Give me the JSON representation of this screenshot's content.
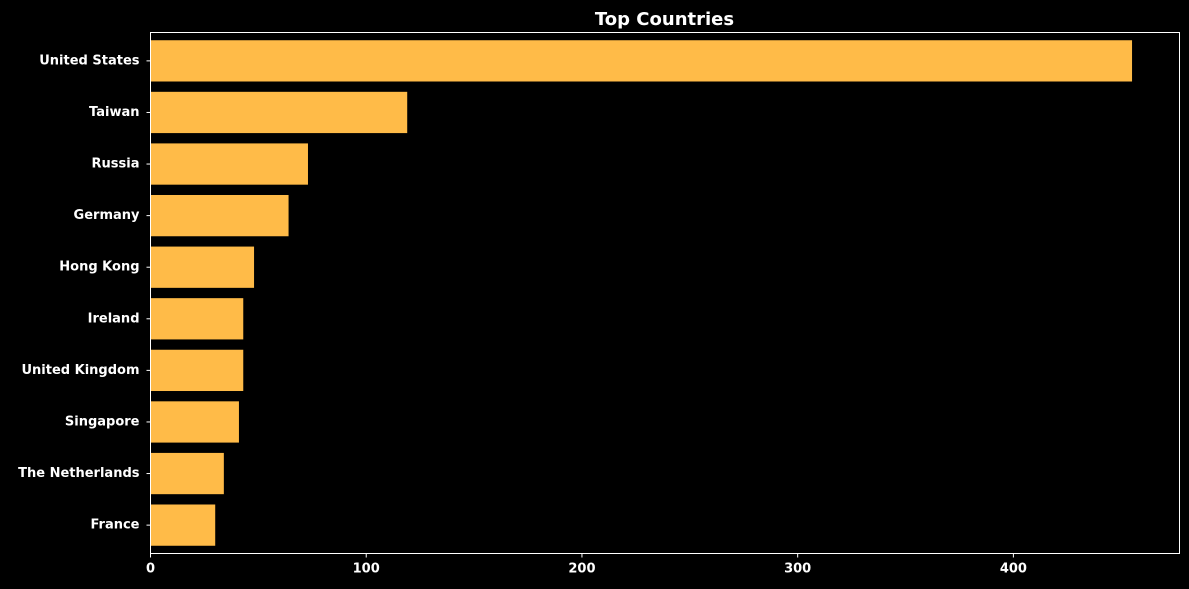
{
  "chart_data": {
    "type": "bar",
    "orientation": "horizontal",
    "title": "Top Countries",
    "xlabel": "",
    "ylabel": "",
    "categories": [
      "United States",
      "Taiwan",
      "Russia",
      "Germany",
      "Hong Kong",
      "Ireland",
      "United Kingdom",
      "Singapore",
      "The Netherlands",
      "France"
    ],
    "values": [
      455,
      119,
      73,
      64,
      48,
      43,
      43,
      41,
      34,
      30
    ],
    "xlim": [
      0,
      477
    ],
    "xticks": [
      0,
      100,
      200,
      300,
      400
    ],
    "grid": false,
    "colors": {
      "background": "#000000",
      "bar": "#ffbb48",
      "axis": "#ffffff",
      "text": "#ffffff"
    }
  }
}
